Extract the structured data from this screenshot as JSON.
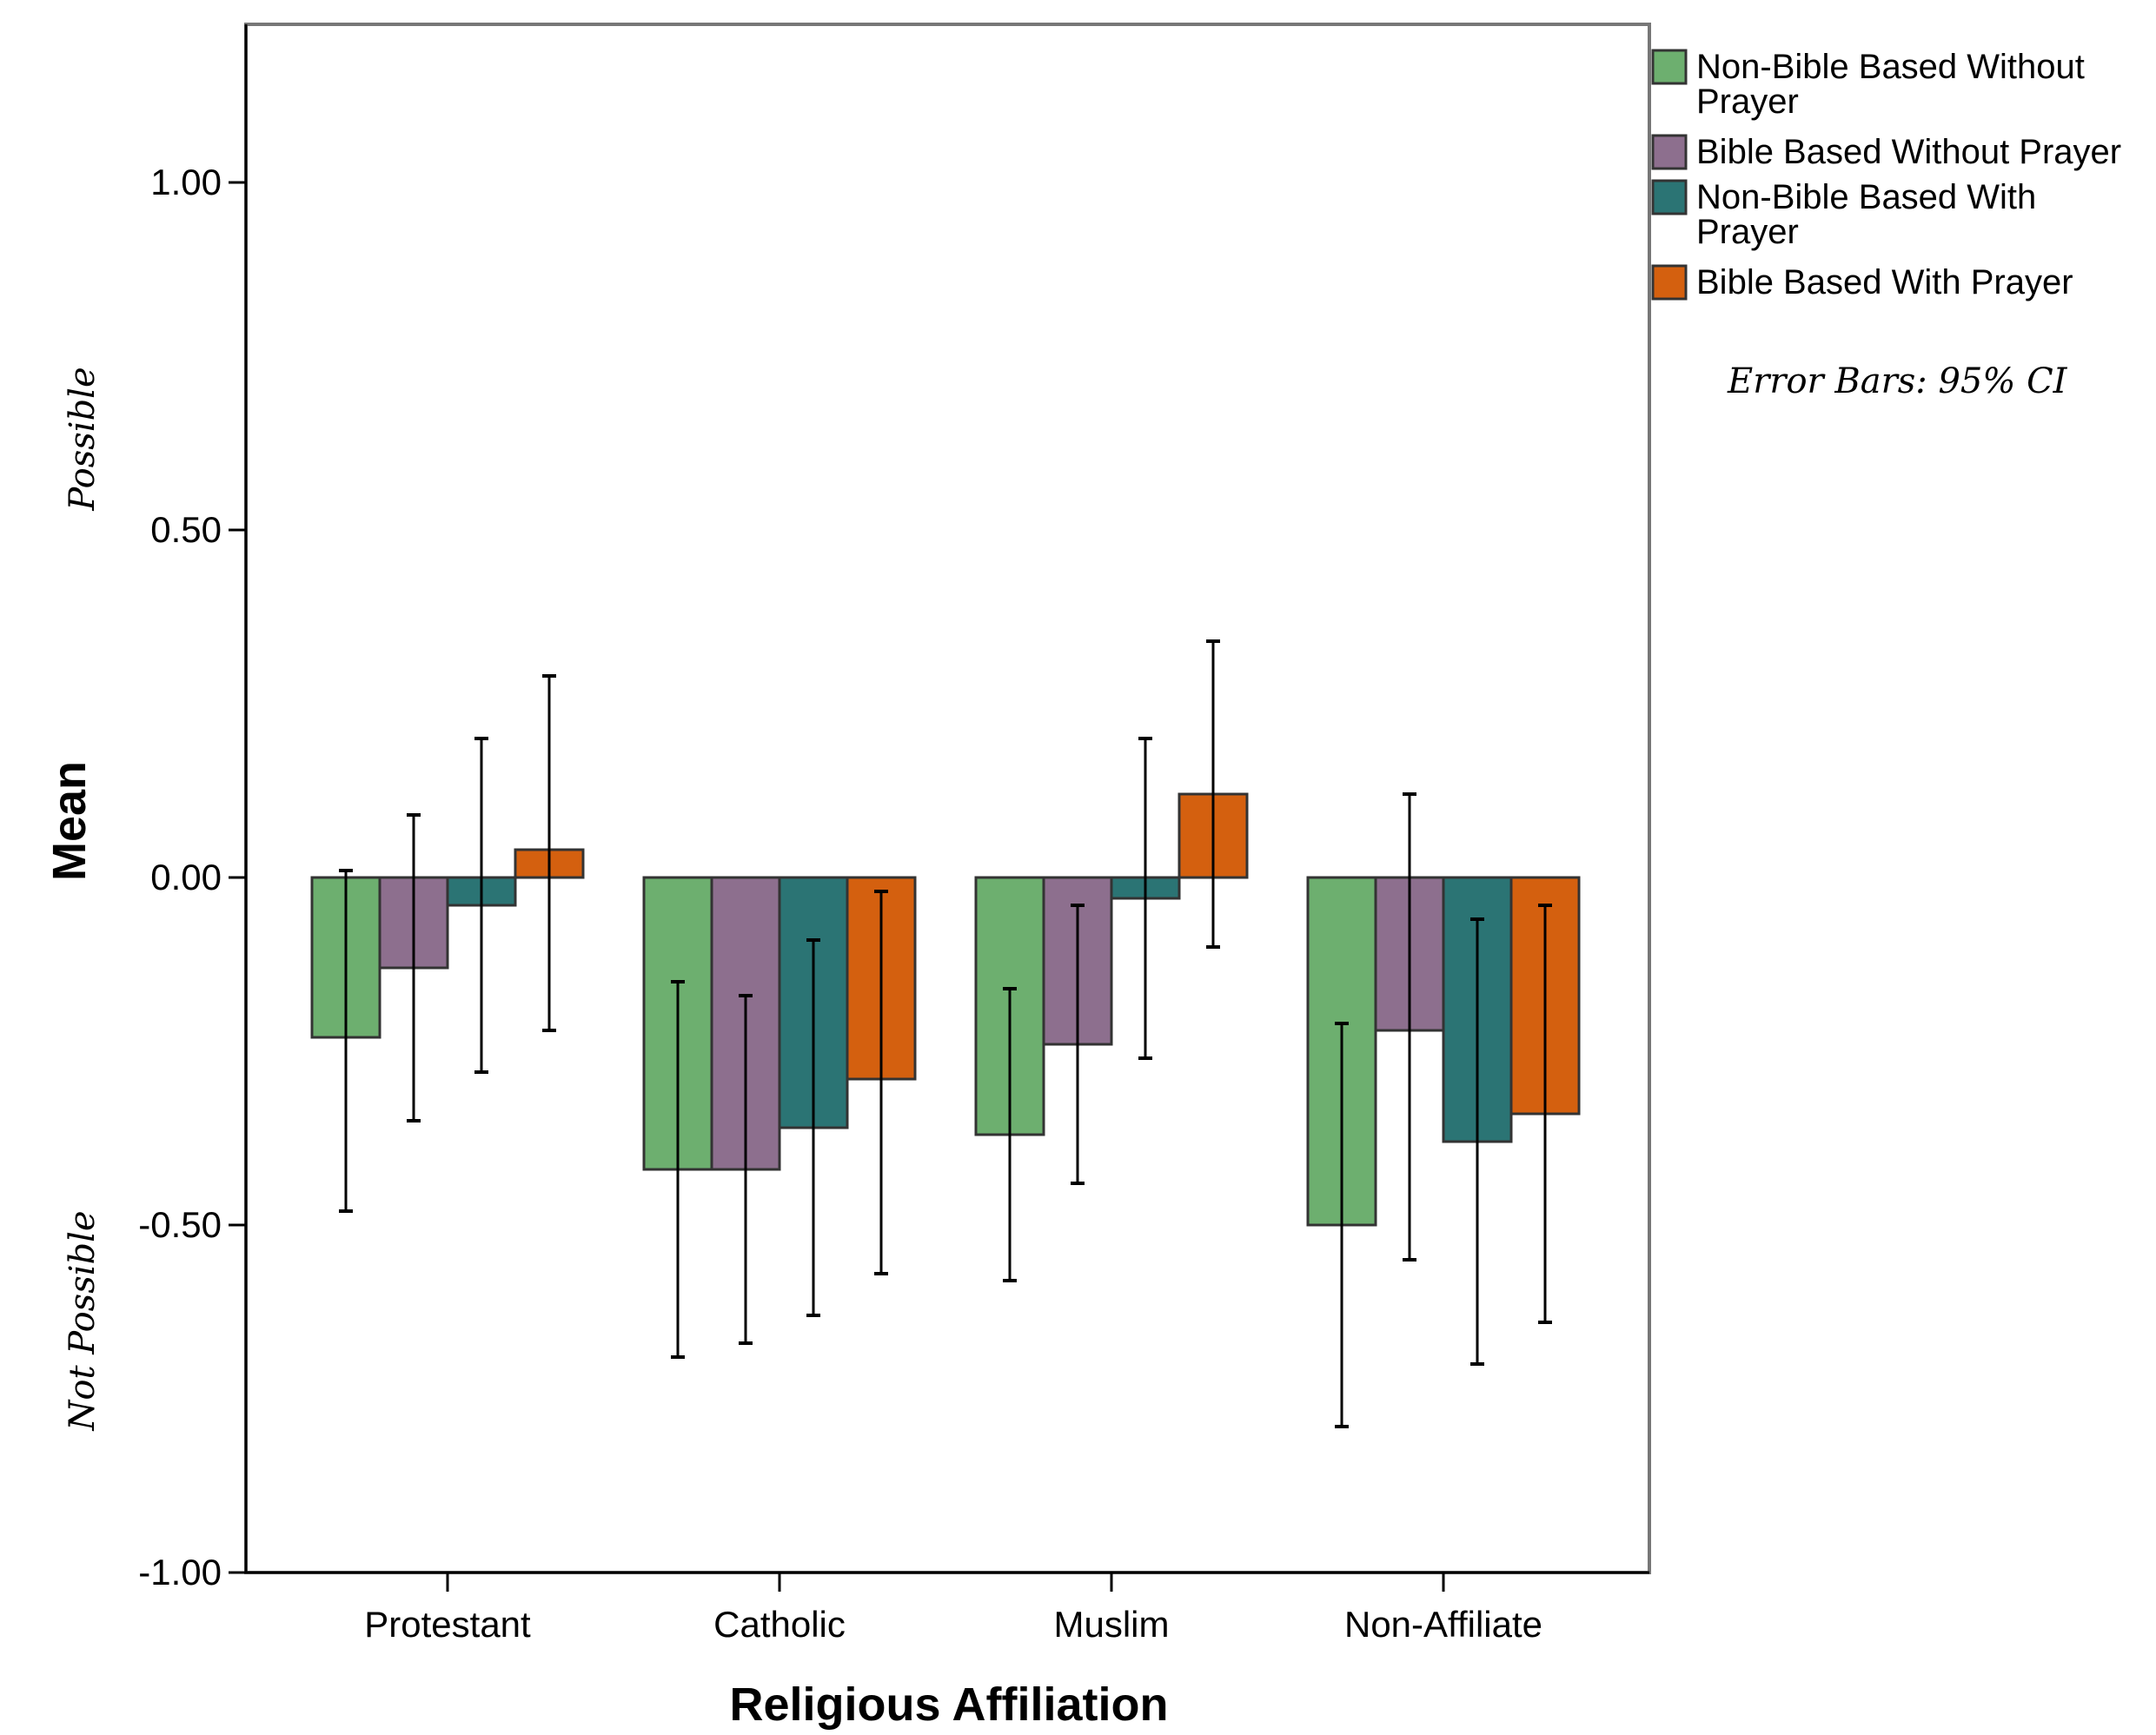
{
  "chart_data": {
    "type": "bar",
    "xlabel": "Religious Affiliation",
    "ylabel": "Mean",
    "ylabel_top": "Possible",
    "ylabel_bottom": "Not Possible",
    "ylim": [
      -1.0,
      1.2
    ],
    "yticks": [
      {
        "value": 1.0,
        "label": "1.00"
      },
      {
        "value": 0.5,
        "label": "0.50"
      },
      {
        "value": 0.0,
        "label": "0.00"
      },
      {
        "value": -0.5,
        "label": "-0.50"
      },
      {
        "value": -1.0,
        "label": "-1.00"
      }
    ],
    "grid": false,
    "legend_position": "top-right outside",
    "error_bars_note": "Error Bars:  95% CI",
    "categories": [
      "Protestant",
      "Catholic",
      "Muslim",
      "Non-Affiliate"
    ],
    "series": [
      {
        "name_lines": [
          "Non-Bible Based Without",
          "Prayer"
        ],
        "color": "#6daf6f",
        "values": [
          -0.23,
          -0.42,
          -0.37,
          -0.5
        ],
        "ci_low": [
          -0.48,
          -0.69,
          -0.58,
          -0.79
        ],
        "ci_high": [
          0.01,
          -0.15,
          -0.16,
          -0.21
        ]
      },
      {
        "name_lines": [
          "Bible Based Without Prayer"
        ],
        "color": "#8d6f8e",
        "values": [
          -0.13,
          -0.42,
          -0.24,
          -0.22
        ],
        "ci_low": [
          -0.35,
          -0.67,
          -0.44,
          -0.55
        ],
        "ci_high": [
          0.09,
          -0.17,
          -0.04,
          0.12
        ]
      },
      {
        "name_lines": [
          "Non-Bible Based With",
          "Prayer"
        ],
        "color": "#2b7474",
        "values": [
          -0.04,
          -0.36,
          -0.03,
          -0.38
        ],
        "ci_low": [
          -0.28,
          -0.63,
          -0.26,
          -0.7
        ],
        "ci_high": [
          0.2,
          -0.09,
          0.2,
          -0.06
        ]
      },
      {
        "name_lines": [
          "Bible Based With Prayer"
        ],
        "color": "#d4600f",
        "values": [
          0.04,
          -0.29,
          0.12,
          -0.34
        ],
        "ci_low": [
          -0.22,
          -0.57,
          -0.1,
          -0.64
        ],
        "ci_high": [
          0.29,
          -0.02,
          0.34,
          -0.04
        ]
      }
    ]
  }
}
